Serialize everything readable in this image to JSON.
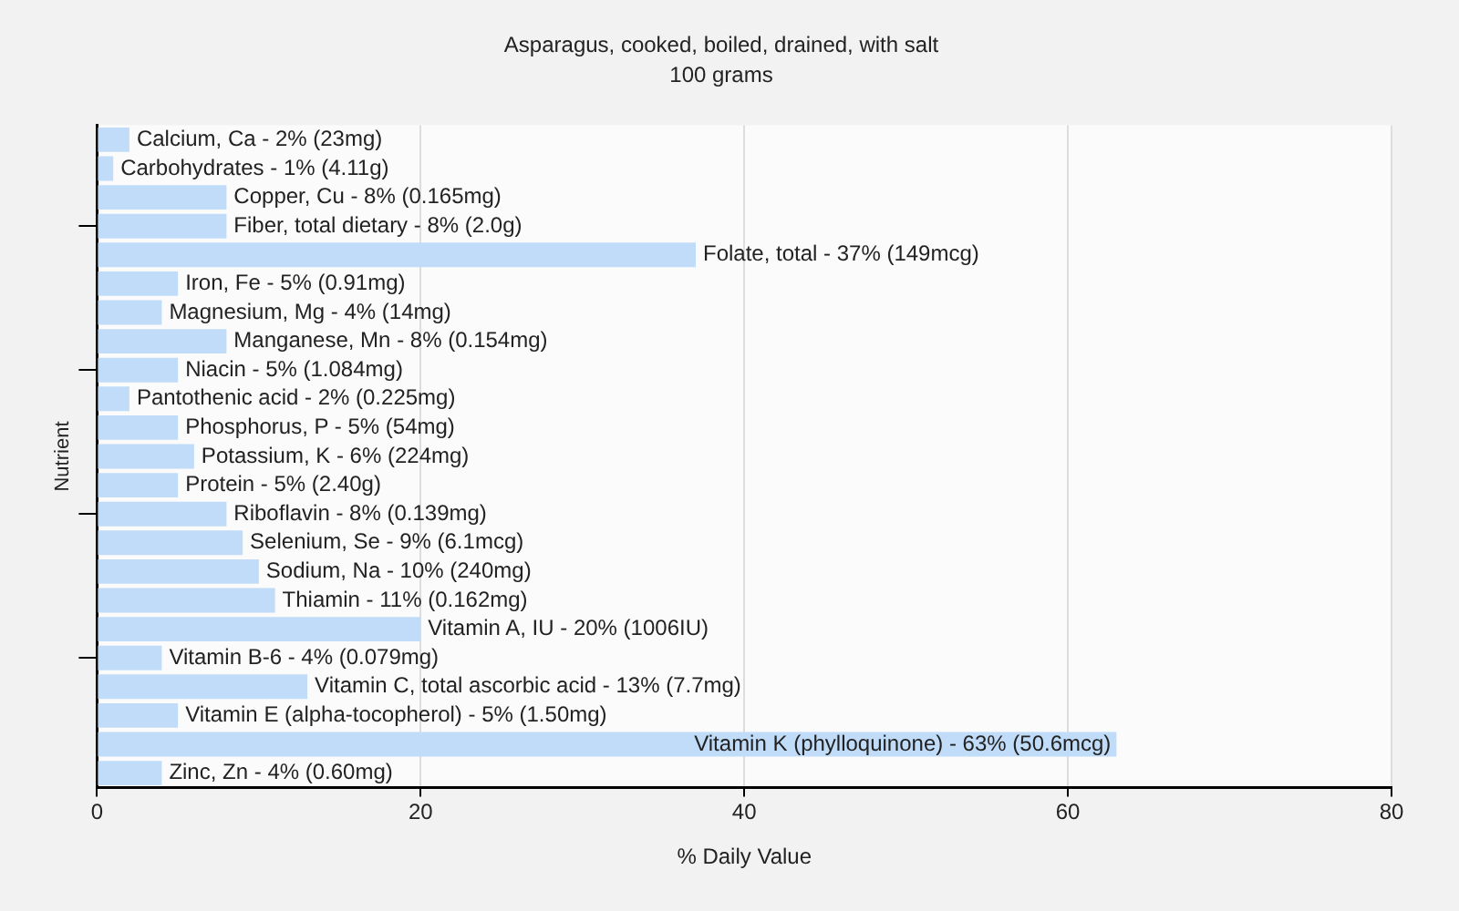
{
  "chart_data": {
    "type": "bar",
    "orientation": "horizontal",
    "title": "Asparagus, cooked, boiled, drained, with salt",
    "subtitle": "100 grams",
    "xlabel": "% Daily Value",
    "ylabel": "Nutrient",
    "categories": [
      "Calcium, Ca - 2% (23mg)",
      "Carbohydrates - 1% (4.11g)",
      "Copper, Cu - 8% (0.165mg)",
      "Fiber, total dietary - 8% (2.0g)",
      "Folate, total - 37% (149mcg)",
      "Iron, Fe - 5% (0.91mg)",
      "Magnesium, Mg - 4% (14mg)",
      "Manganese, Mn - 8% (0.154mg)",
      "Niacin - 5% (1.084mg)",
      "Pantothenic acid - 2% (0.225mg)",
      "Phosphorus, P - 5% (54mg)",
      "Potassium, K - 6% (224mg)",
      "Protein - 5% (2.40g)",
      "Riboflavin - 8% (0.139mg)",
      "Selenium, Se - 9% (6.1mcg)",
      "Sodium, Na - 10% (240mg)",
      "Thiamin - 11% (0.162mg)",
      "Vitamin A, IU - 20% (1006IU)",
      "Vitamin B-6 - 4% (0.079mg)",
      "Vitamin C, total ascorbic acid - 13% (7.7mg)",
      "Vitamin E (alpha-tocopherol) - 5% (1.50mg)",
      "Vitamin K (phylloquinone) - 63% (50.6mcg)",
      "Zinc, Zn - 4% (0.60mg)"
    ],
    "values": [
      2,
      1,
      8,
      8,
      37,
      5,
      4,
      8,
      5,
      2,
      5,
      6,
      5,
      8,
      9,
      10,
      11,
      20,
      4,
      13,
      5,
      63,
      4
    ],
    "color": "#c0dcf8",
    "xlim": [
      0,
      80
    ],
    "xticks": [
      0,
      20,
      40,
      60,
      80
    ],
    "grid": "x"
  }
}
